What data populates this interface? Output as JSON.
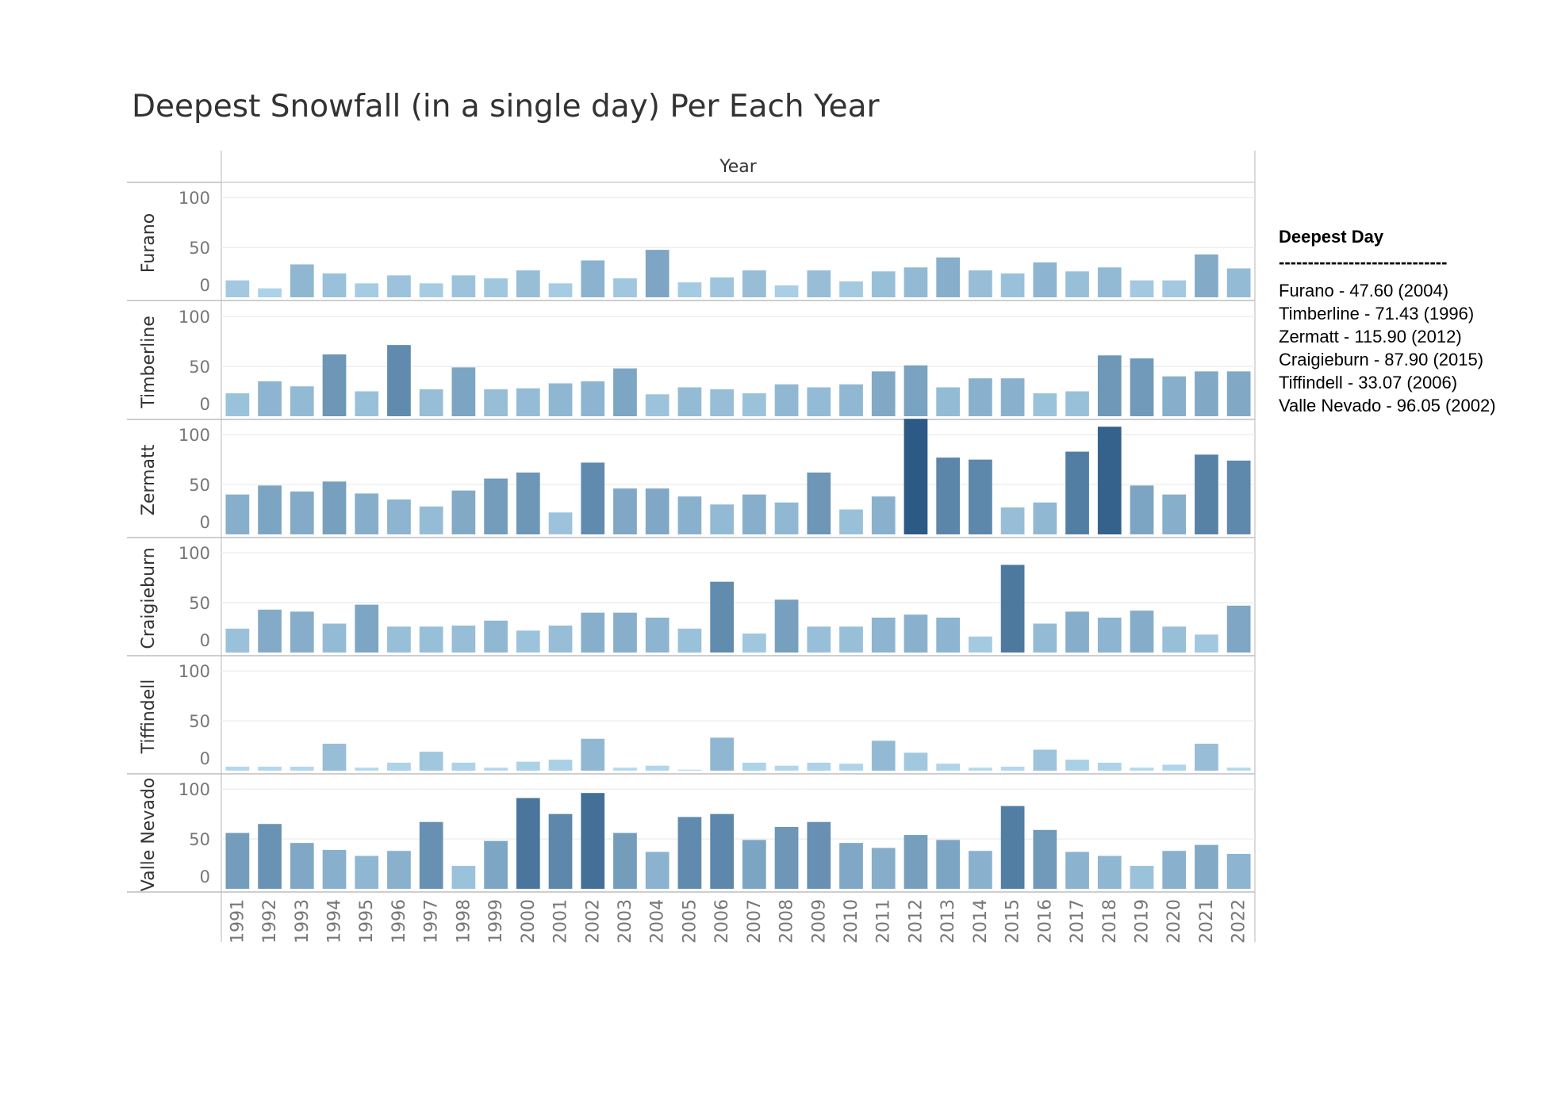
{
  "chart_data": {
    "type": "bar",
    "title": "Deepest Snowfall (in a single day) Per Each Year",
    "column_header": "Year",
    "years": [
      "1991",
      "1992",
      "1993",
      "1994",
      "1995",
      "1996",
      "1997",
      "1998",
      "1999",
      "2000",
      "2001",
      "2002",
      "2003",
      "2004",
      "2005",
      "2006",
      "2007",
      "2008",
      "2009",
      "2010",
      "2011",
      "2012",
      "2013",
      "2014",
      "2015",
      "2016",
      "2017",
      "2018",
      "2019",
      "2020",
      "2021",
      "2022"
    ],
    "ylim": [
      0,
      120
    ],
    "yticks": [
      0,
      50,
      100
    ],
    "grid": true,
    "color_scale": [
      "#b7dcf0",
      "#2c5985"
    ],
    "rows": [
      {
        "name": "Furano",
        "values": [
          17,
          9,
          33,
          24,
          14,
          22,
          14,
          22,
          19,
          27,
          14,
          37,
          19,
          47.6,
          15,
          20,
          27,
          12,
          27,
          16,
          26,
          30,
          40,
          27,
          24,
          35,
          26,
          30,
          17,
          17,
          43,
          29
        ]
      },
      {
        "name": "Timberline",
        "values": [
          23,
          35,
          30,
          62,
          25,
          71.43,
          27,
          49,
          27,
          28,
          33,
          35,
          48,
          22,
          29,
          27,
          23,
          32,
          29,
          32,
          45,
          51,
          29,
          38,
          38,
          23,
          25,
          61,
          58,
          40,
          45,
          45
        ]
      },
      {
        "name": "Zermatt",
        "values": [
          40,
          49,
          43,
          53,
          41,
          35,
          28,
          44,
          56,
          62,
          22,
          72,
          46,
          46,
          38,
          30,
          40,
          32,
          62,
          25,
          38,
          115.9,
          77,
          75,
          27,
          32,
          83,
          108,
          49,
          40,
          80,
          74
        ]
      },
      {
        "name": "Craigieburn",
        "values": [
          24,
          43,
          41,
          29,
          48,
          26,
          26,
          27,
          32,
          22,
          27,
          40,
          40,
          35,
          24,
          71,
          19,
          53,
          26,
          26,
          35,
          38,
          35,
          16,
          87.9,
          29,
          41,
          35,
          42,
          26,
          18,
          47
        ]
      },
      {
        "name": "Tiffindell",
        "values": [
          4,
          4,
          4,
          27,
          3,
          8,
          19,
          8,
          3,
          9,
          11,
          32,
          3,
          5,
          1,
          33.07,
          8,
          5,
          8,
          7,
          30,
          18,
          7,
          3,
          4,
          21,
          11,
          8,
          3,
          6,
          27,
          3
        ]
      },
      {
        "name": "Valle Nevado",
        "values": [
          56,
          65,
          46,
          39,
          33,
          38,
          67,
          23,
          48,
          91,
          75,
          96.05,
          56,
          37,
          72,
          75,
          49,
          62,
          67,
          46,
          41,
          54,
          49,
          38,
          83,
          59,
          37,
          33,
          23,
          38,
          44,
          35
        ]
      }
    ]
  },
  "legend": {
    "title": "Deepest Day",
    "separator": "-----------------------------",
    "lines": [
      "Furano - 47.60 (2004)",
      "Timberline - 71.43 (1996)",
      "Zermatt - 115.90 (2012)",
      "Craigieburn - 87.90 (2015)",
      "Tiffindell - 33.07 (2006)",
      "Valle Nevado - 96.05 (2002)"
    ]
  }
}
